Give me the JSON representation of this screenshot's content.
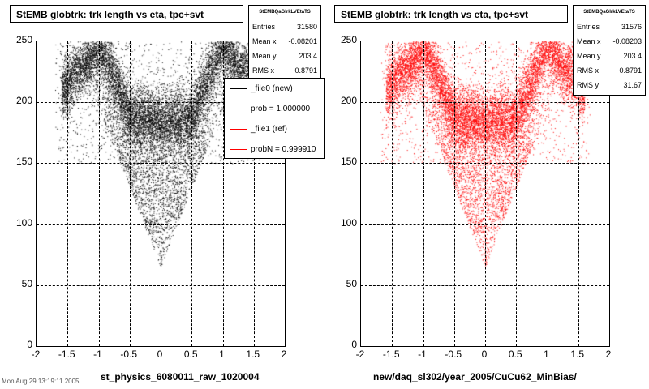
{
  "panels": [
    {
      "title": "StEMB globtrk: trk length vs eta, tpc+svt",
      "xlabel": "st_physics_6080011_raw_1020004",
      "color": "#000000",
      "stats": {
        "name": "StEMBQaGlrkLVEtaTS",
        "rows": [
          {
            "label": "Entries",
            "value": "31580"
          },
          {
            "label": "Mean x",
            "value": "-0.08201"
          },
          {
            "label": "Mean y",
            "value": "203.4"
          },
          {
            "label": "RMS x",
            "value": "0.8791"
          }
        ]
      },
      "legend": [
        {
          "label": "_file0 (new)",
          "color": "#000000"
        },
        {
          "label": "prob = 1.000000",
          "color": "#000000"
        },
        {
          "label": "_file1 (ref)",
          "color": "#ff0000"
        },
        {
          "label": "probN = 0.999910",
          "color": "#ff0000"
        }
      ]
    },
    {
      "title": "StEMB globtrk: trk length vs eta, tpc+svt",
      "xlabel": "new/daq_sl302/year_2005/CuCu62_MinBias/",
      "color": "#ff0000",
      "stats": {
        "name": "StEMBQaGlrkLVEtaTS",
        "rows": [
          {
            "label": "Entries",
            "value": "31576"
          },
          {
            "label": "Mean x",
            "value": "-0.08203"
          },
          {
            "label": "Mean y",
            "value": "203.4"
          },
          {
            "label": "RMS x",
            "value": "0.8791"
          },
          {
            "label": "RMS y",
            "value": "31.67"
          }
        ]
      }
    }
  ],
  "footer": "Mon Aug 29 13:19:11 2005",
  "chart_data": [
    {
      "type": "scatter",
      "title": "StEMB globtrk: trk length vs eta, tpc+svt",
      "xlabel": "st_physics_6080011_raw_1020004",
      "ylabel": "",
      "xlim": [
        -2,
        2
      ],
      "ylim": [
        0,
        250
      ],
      "xticks": [
        "-2",
        "-1.5",
        "-1",
        "-0.5",
        "0",
        "0.5",
        "1",
        "1.5",
        "2"
      ],
      "yticks": [
        "0",
        "50",
        "100",
        "150",
        "200",
        "250"
      ],
      "grid": true,
      "series": [
        {
          "name": "_file0 (new)",
          "color": "#000000"
        }
      ]
    },
    {
      "type": "scatter",
      "title": "StEMB globtrk: trk length vs eta, tpc+svt",
      "xlabel": "new/daq_sl302/year_2005/CuCu62_MinBias/",
      "ylabel": "",
      "xlim": [
        -2,
        2
      ],
      "ylim": [
        0,
        250
      ],
      "xticks": [
        "-2",
        "-1.5",
        "-1",
        "-0.5",
        "0",
        "0.5",
        "1",
        "1.5",
        "2"
      ],
      "yticks": [
        "0",
        "50",
        "100",
        "150",
        "200",
        "250"
      ],
      "grid": true,
      "series": [
        {
          "name": "_file1 (ref)",
          "color": "#ff0000"
        }
      ]
    }
  ]
}
